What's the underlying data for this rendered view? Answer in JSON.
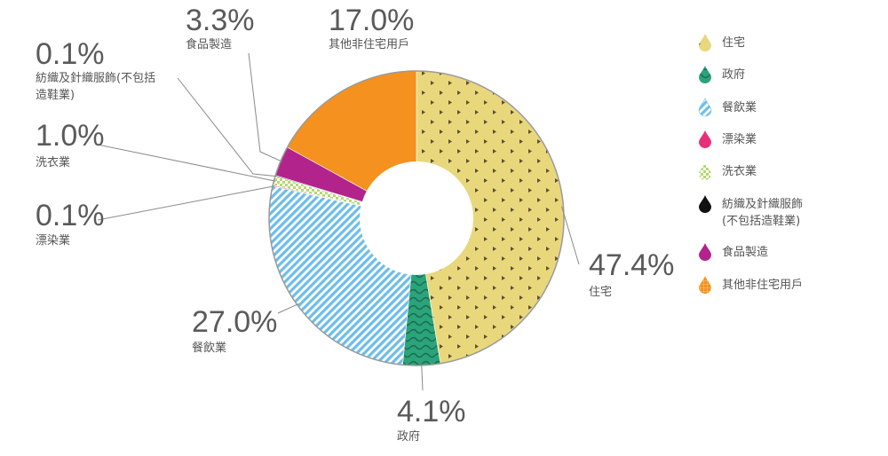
{
  "chart_data": {
    "type": "pie",
    "donut": true,
    "categories": [
      "住宅",
      "政府",
      "餐飲業",
      "漂染業",
      "洗衣業",
      "紡織及針織服飾(不包括造鞋業)",
      "食品製造",
      "其他非住宅用戶"
    ],
    "values": [
      47.4,
      4.1,
      27.0,
      0.1,
      1.0,
      0.1,
      3.3,
      17.0
    ],
    "value_labels": [
      "47.4%",
      "4.1%",
      "27.0%",
      "0.1%",
      "1.0%",
      "0.1%",
      "3.3%",
      "17.0%"
    ],
    "slice_labels": [
      [
        "住宅"
      ],
      [
        "政府"
      ],
      [
        "餐飲業"
      ],
      [
        "漂染業"
      ],
      [
        "洗衣業"
      ],
      [
        "紡織及針織服飾(不包括",
        "造鞋業)"
      ],
      [
        "食品製造"
      ],
      [
        "其他非住宅用戶"
      ]
    ],
    "colors": [
      "#e9d77c",
      "#2aa47a",
      "#8fcdf0",
      "#e8307a",
      "#b5d870",
      "#111111",
      "#b2248c",
      "#f5911e"
    ],
    "legend_position": "right",
    "legend": [
      {
        "label": [
          "住宅"
        ],
        "color": "#e9d77c",
        "icon": "dotted-droplet-icon"
      },
      {
        "label": [
          "政府"
        ],
        "color": "#2aa47a",
        "icon": "wave-droplet-icon"
      },
      {
        "label": [
          "餐飲業"
        ],
        "color": "#8fcdf0",
        "icon": "striped-droplet-icon"
      },
      {
        "label": [
          "漂染業"
        ],
        "color": "#e8307a",
        "icon": "droplet-icon"
      },
      {
        "label": [
          "洗衣業"
        ],
        "color": "#b5d870",
        "icon": "checker-droplet-icon"
      },
      {
        "label": [
          "紡織及針織服飾",
          "(不包括造鞋業)"
        ],
        "color": "#111111",
        "icon": "droplet-icon"
      },
      {
        "label": [
          "食品製造"
        ],
        "color": "#b2248c",
        "icon": "droplet-icon"
      },
      {
        "label": [
          "其他非住宅用戶"
        ],
        "color": "#f5911e",
        "icon": "grid-droplet-icon"
      }
    ]
  }
}
